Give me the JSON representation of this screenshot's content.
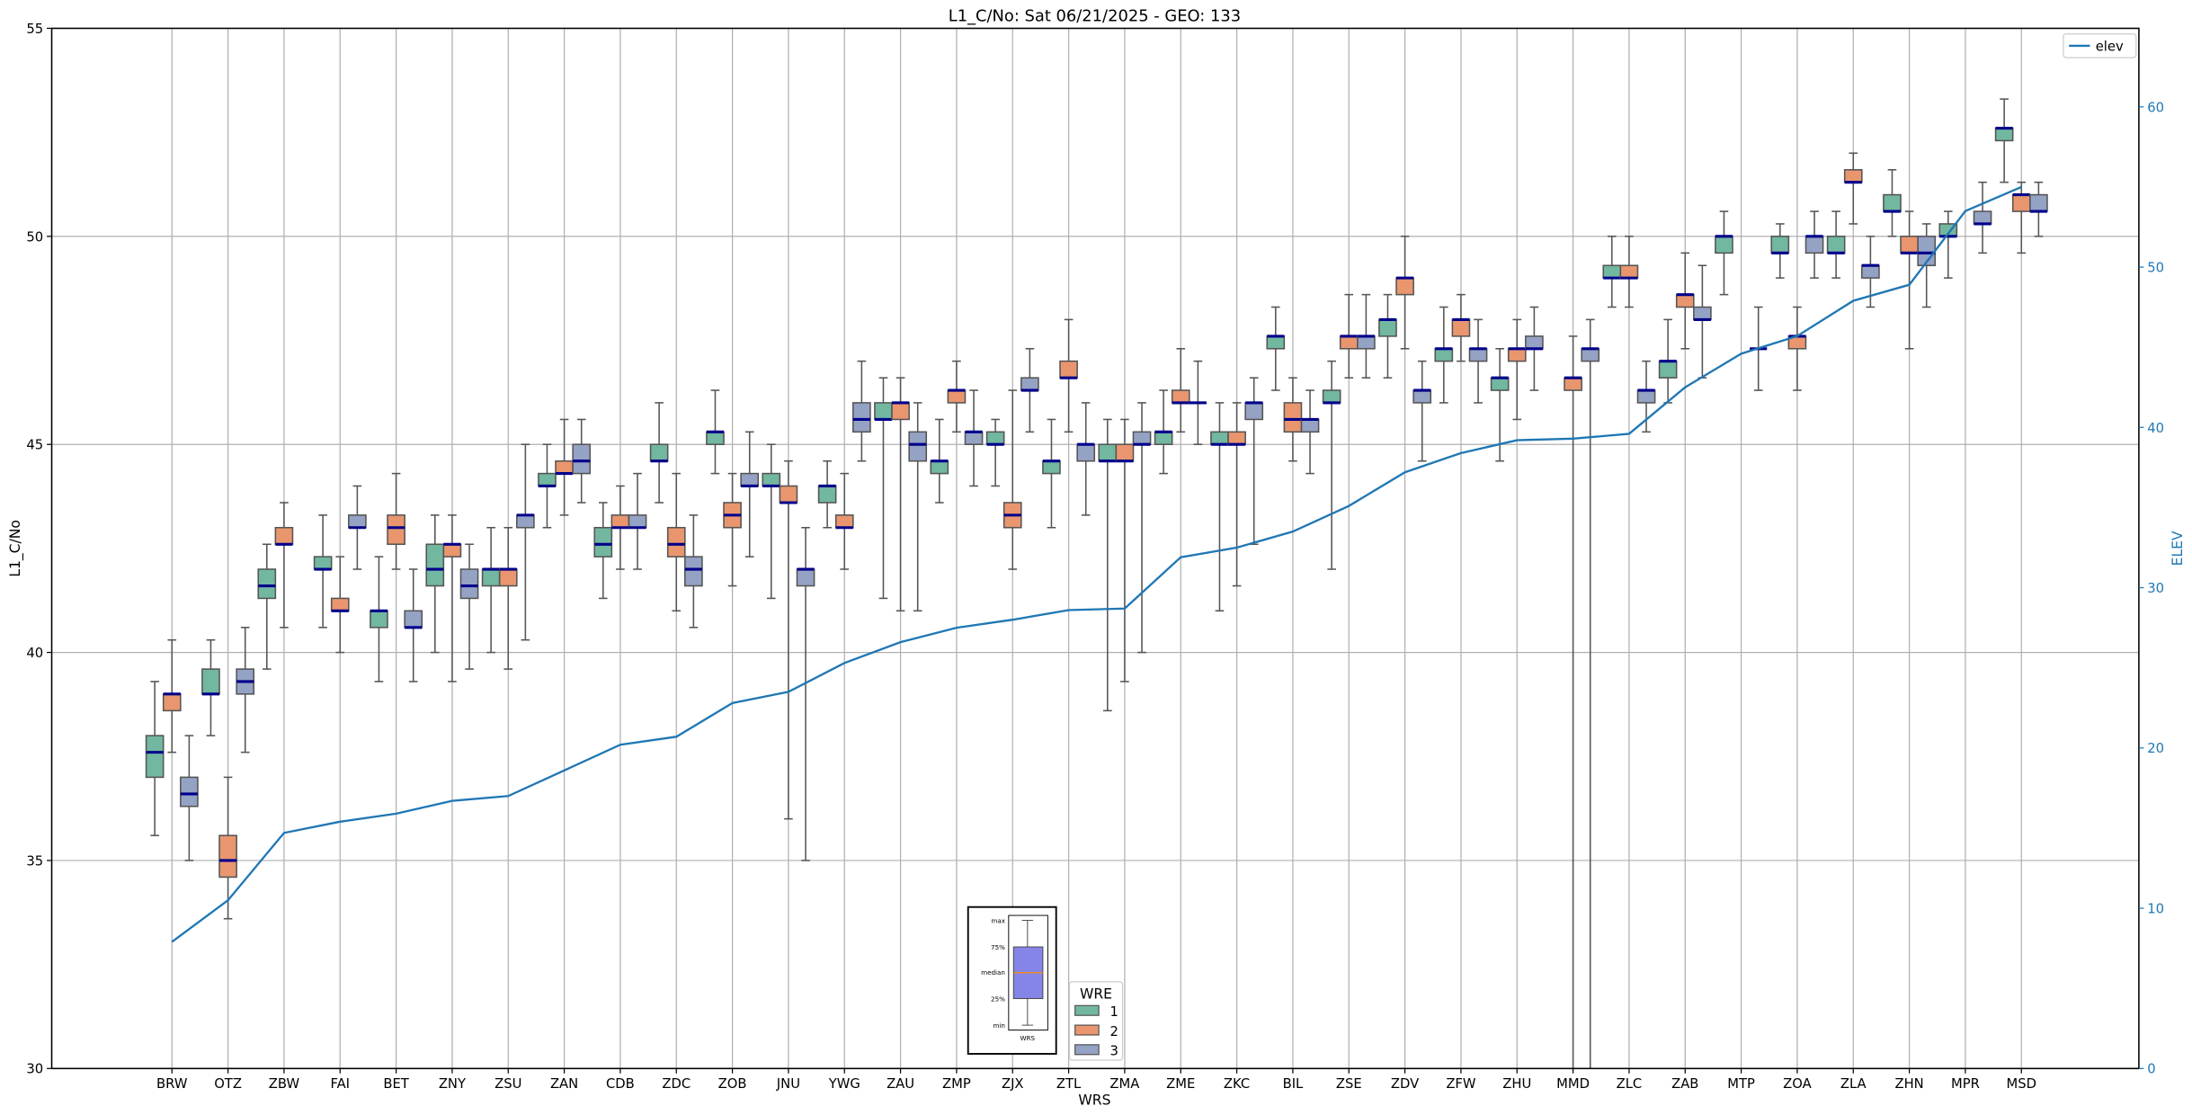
{
  "chart_data": {
    "type": "boxplot",
    "title": "L1_C/No: Sat 06/21/2025 - GEO: 133",
    "xlabel": "WRS",
    "ylabel": "L1_C/No",
    "y2label": "ELEV",
    "ylim": [
      30,
      55
    ],
    "y2lim": [
      0,
      64.9
    ],
    "yticks": [
      30,
      35,
      40,
      45,
      50,
      55
    ],
    "y2ticks": [
      0,
      10,
      20,
      30,
      40,
      50,
      60
    ],
    "grid": true,
    "group_legend": {
      "title": "WRE",
      "placement": "bottom-center",
      "groups": [
        "1",
        "2",
        "3"
      ],
      "colors": [
        "#72b7a0",
        "#e9966f",
        "#94a2c4"
      ]
    },
    "line_legend": {
      "label": "elev",
      "placement": "top-right",
      "color": "#1f77b4"
    },
    "median_color": "#00008b",
    "box_stat_order": [
      "min",
      "q1",
      "median",
      "q3",
      "max"
    ],
    "stations": [
      {
        "name": "BRW",
        "elev": 7.9,
        "boxes": [
          [
            35.6,
            37.0,
            37.6,
            38.0,
            39.3
          ],
          [
            37.6,
            38.6,
            39.0,
            39.0,
            40.3
          ],
          [
            35.0,
            36.3,
            36.6,
            37.0,
            38.0
          ]
        ]
      },
      {
        "name": "OTZ",
        "elev": 10.5,
        "boxes": [
          [
            38.0,
            39.0,
            39.0,
            39.6,
            40.3
          ],
          [
            33.6,
            34.6,
            35.0,
            35.6,
            37.0
          ],
          [
            37.6,
            39.0,
            39.3,
            39.6,
            40.6
          ]
        ]
      },
      {
        "name": "ZBW",
        "elev": 14.7,
        "boxes": [
          [
            39.6,
            41.3,
            41.6,
            42.0,
            42.6
          ],
          [
            40.6,
            42.6,
            42.6,
            43.0,
            43.6
          ],
          null
        ]
      },
      {
        "name": "FAI",
        "elev": 15.4,
        "boxes": [
          [
            40.6,
            42.0,
            42.0,
            42.3,
            43.3
          ],
          [
            40.0,
            41.0,
            41.0,
            41.3,
            42.3
          ],
          [
            42.0,
            43.0,
            43.0,
            43.3,
            44.0
          ]
        ]
      },
      {
        "name": "BET",
        "elev": 15.9,
        "boxes": [
          [
            39.3,
            40.6,
            41.0,
            41.0,
            42.3
          ],
          [
            42.0,
            42.6,
            43.0,
            43.3,
            44.3
          ],
          [
            39.3,
            40.6,
            40.6,
            41.0,
            42.0
          ]
        ]
      },
      {
        "name": "ZNY",
        "elev": 16.7,
        "boxes": [
          [
            40.0,
            41.6,
            42.0,
            42.6,
            43.3
          ],
          [
            39.3,
            42.3,
            42.6,
            42.6,
            43.3
          ],
          [
            39.6,
            41.3,
            41.6,
            42.0,
            42.6
          ]
        ]
      },
      {
        "name": "ZSU",
        "elev": 17.0,
        "boxes": [
          [
            40.0,
            41.6,
            42.0,
            42.0,
            43.0
          ],
          [
            39.6,
            41.6,
            42.0,
            42.0,
            43.0
          ],
          [
            40.3,
            43.0,
            43.3,
            43.3,
            45.0
          ]
        ]
      },
      {
        "name": "ZAN",
        "elev": 18.6,
        "boxes": [
          [
            43.0,
            44.0,
            44.0,
            44.3,
            45.0
          ],
          [
            43.3,
            44.3,
            44.3,
            44.6,
            45.6
          ],
          [
            43.6,
            44.3,
            44.6,
            45.0,
            45.6
          ]
        ]
      },
      {
        "name": "CDB",
        "elev": 20.2,
        "boxes": [
          [
            41.3,
            42.3,
            42.6,
            43.0,
            43.6
          ],
          [
            42.0,
            43.0,
            43.0,
            43.3,
            44.0
          ],
          [
            42.0,
            43.0,
            43.0,
            43.3,
            44.3
          ]
        ]
      },
      {
        "name": "ZDC",
        "elev": 20.7,
        "boxes": [
          [
            43.6,
            44.6,
            44.6,
            45.0,
            46.0
          ],
          [
            41.0,
            42.3,
            42.6,
            43.0,
            44.3
          ],
          [
            40.6,
            41.6,
            42.0,
            42.3,
            43.3
          ]
        ]
      },
      {
        "name": "ZOB",
        "elev": 22.8,
        "boxes": [
          [
            44.3,
            45.0,
            45.3,
            45.3,
            46.3
          ],
          [
            41.6,
            43.0,
            43.3,
            43.6,
            44.3
          ],
          [
            42.3,
            44.0,
            44.0,
            44.3,
            45.3
          ]
        ]
      },
      {
        "name": "JNU",
        "elev": 23.5,
        "boxes": [
          [
            41.3,
            44.0,
            44.0,
            44.3,
            45.0
          ],
          [
            36.0,
            43.6,
            43.6,
            44.0,
            44.6
          ],
          [
            35.0,
            41.6,
            42.0,
            42.0,
            43.0
          ]
        ]
      },
      {
        "name": "YWG",
        "elev": 25.3,
        "boxes": [
          [
            43.0,
            43.6,
            44.0,
            44.0,
            44.6
          ],
          [
            42.0,
            43.0,
            43.0,
            43.3,
            44.3
          ],
          [
            44.6,
            45.3,
            45.6,
            46.0,
            47.0
          ]
        ]
      },
      {
        "name": "ZAU",
        "elev": 26.6,
        "boxes": [
          [
            41.3,
            45.6,
            45.6,
            46.0,
            46.6
          ],
          [
            41.0,
            45.6,
            46.0,
            46.0,
            46.6
          ],
          [
            41.0,
            44.6,
            45.0,
            45.3,
            46.0
          ]
        ]
      },
      {
        "name": "ZMP",
        "elev": 27.5,
        "boxes": [
          [
            43.6,
            44.3,
            44.6,
            44.6,
            45.6
          ],
          [
            45.3,
            46.0,
            46.3,
            46.3,
            47.0
          ],
          [
            44.0,
            45.0,
            45.3,
            45.3,
            46.3
          ]
        ]
      },
      {
        "name": "ZJX",
        "elev": 28.0,
        "boxes": [
          [
            44.0,
            45.0,
            45.0,
            45.3,
            45.6
          ],
          [
            42.0,
            43.0,
            43.3,
            43.6,
            46.3
          ],
          [
            45.3,
            46.3,
            46.3,
            46.6,
            47.3
          ]
        ]
      },
      {
        "name": "ZTL",
        "elev": 28.6,
        "boxes": [
          [
            43.0,
            44.3,
            44.6,
            44.6,
            45.6
          ],
          [
            45.3,
            46.6,
            46.6,
            47.0,
            48.0
          ],
          [
            43.3,
            44.6,
            45.0,
            45.0,
            46.0
          ]
        ]
      },
      {
        "name": "ZMA",
        "elev": 28.7,
        "boxes": [
          [
            38.6,
            44.6,
            44.6,
            45.0,
            45.6
          ],
          [
            39.3,
            44.6,
            44.6,
            45.0,
            45.6
          ],
          [
            40.0,
            45.0,
            45.0,
            45.3,
            46.0
          ]
        ]
      },
      {
        "name": "ZME",
        "elev": 31.9,
        "boxes": [
          [
            44.3,
            45.0,
            45.3,
            45.3,
            46.3
          ],
          [
            45.3,
            46.0,
            46.0,
            46.3,
            47.3
          ],
          [
            45.0,
            46.0,
            46.0,
            46.0,
            47.0
          ]
        ]
      },
      {
        "name": "ZKC",
        "elev": 32.5,
        "boxes": [
          [
            41.0,
            45.0,
            45.0,
            45.3,
            46.0
          ],
          [
            41.6,
            45.0,
            45.0,
            45.3,
            46.0
          ],
          [
            42.6,
            45.6,
            46.0,
            46.0,
            46.6
          ]
        ]
      },
      {
        "name": "BIL",
        "elev": 33.5,
        "boxes": [
          [
            46.3,
            47.3,
            47.6,
            47.6,
            48.3
          ],
          [
            44.6,
            45.3,
            45.6,
            46.0,
            46.6
          ],
          [
            44.3,
            45.3,
            45.6,
            45.6,
            46.3
          ]
        ]
      },
      {
        "name": "ZSE",
        "elev": 35.1,
        "boxes": [
          [
            42.0,
            46.0,
            46.0,
            46.3,
            47.0
          ],
          [
            46.6,
            47.3,
            47.6,
            47.6,
            48.6
          ],
          [
            46.6,
            47.3,
            47.6,
            47.6,
            48.6
          ]
        ]
      },
      {
        "name": "ZDV",
        "elev": 37.2,
        "boxes": [
          [
            46.6,
            47.6,
            48.0,
            48.0,
            48.6
          ],
          [
            47.3,
            48.6,
            49.0,
            49.0,
            50.0
          ],
          [
            44.6,
            46.0,
            46.3,
            46.3,
            47.0
          ]
        ]
      },
      {
        "name": "ZFW",
        "elev": 38.4,
        "boxes": [
          [
            46.0,
            47.0,
            47.3,
            47.3,
            48.3
          ],
          [
            47.0,
            47.6,
            48.0,
            48.0,
            48.6
          ],
          [
            46.0,
            47.0,
            47.3,
            47.3,
            48.0
          ]
        ]
      },
      {
        "name": "ZHU",
        "elev": 39.2,
        "boxes": [
          [
            44.6,
            46.3,
            46.6,
            46.6,
            47.3
          ],
          [
            45.6,
            47.0,
            47.3,
            47.3,
            48.0
          ],
          [
            46.3,
            47.3,
            47.3,
            47.6,
            48.3
          ]
        ]
      },
      {
        "name": "MMD",
        "elev": 39.3,
        "boxes": [
          null,
          [
            30.0,
            46.3,
            46.6,
            46.6,
            47.6
          ],
          [
            30.0,
            47.0,
            47.3,
            47.3,
            48.0
          ]
        ]
      },
      {
        "name": "ZLC",
        "elev": 39.6,
        "boxes": [
          [
            48.3,
            49.0,
            49.0,
            49.3,
            50.0
          ],
          [
            48.3,
            49.0,
            49.0,
            49.3,
            50.0
          ],
          [
            45.3,
            46.0,
            46.3,
            46.3,
            47.0
          ]
        ]
      },
      {
        "name": "ZAB",
        "elev": 42.5,
        "boxes": [
          [
            46.0,
            46.6,
            47.0,
            47.0,
            48.0
          ],
          [
            47.3,
            48.3,
            48.6,
            48.6,
            49.6
          ],
          [
            46.6,
            48.0,
            48.0,
            48.3,
            49.3
          ]
        ]
      },
      {
        "name": "MTP",
        "elev": 44.6,
        "boxes": [
          [
            48.6,
            49.6,
            50.0,
            50.0,
            50.6
          ],
          null,
          [
            46.3,
            47.3,
            47.3,
            47.3,
            48.3
          ]
        ]
      },
      {
        "name": "ZOA",
        "elev": 45.7,
        "boxes": [
          [
            49.0,
            49.6,
            49.6,
            50.0,
            50.3
          ],
          [
            46.3,
            47.3,
            47.6,
            47.6,
            48.3
          ],
          [
            49.0,
            49.6,
            50.0,
            50.0,
            50.6
          ]
        ]
      },
      {
        "name": "ZLA",
        "elev": 47.9,
        "boxes": [
          [
            49.0,
            49.6,
            49.6,
            50.0,
            50.6
          ],
          [
            50.3,
            51.3,
            51.3,
            51.6,
            52.0
          ],
          [
            48.3,
            49.0,
            49.3,
            49.3,
            50.0
          ]
        ]
      },
      {
        "name": "ZHN",
        "elev": 48.9,
        "boxes": [
          [
            50.0,
            50.6,
            50.6,
            51.0,
            51.6
          ],
          [
            47.3,
            49.6,
            49.6,
            50.0,
            50.6
          ],
          [
            48.3,
            49.3,
            49.6,
            50.0,
            50.3
          ]
        ]
      },
      {
        "name": "MPR",
        "elev": 53.5,
        "boxes": [
          [
            49.0,
            50.0,
            50.0,
            50.3,
            50.6
          ],
          null,
          [
            49.6,
            50.3,
            50.3,
            50.6,
            51.3
          ]
        ]
      },
      {
        "name": "MSD",
        "elev": 55.0,
        "boxes": [
          [
            51.3,
            52.3,
            52.6,
            52.6,
            53.3
          ],
          [
            49.6,
            50.6,
            51.0,
            51.0,
            51.3
          ],
          [
            50.0,
            50.6,
            50.6,
            51.0,
            51.3
          ]
        ]
      }
    ]
  },
  "inset": {
    "labels": [
      "max",
      "75%",
      "median",
      "25%",
      "min"
    ],
    "xlabel": "WRS",
    "box_color": "#8585e8",
    "median_color": "#ff8c00"
  }
}
